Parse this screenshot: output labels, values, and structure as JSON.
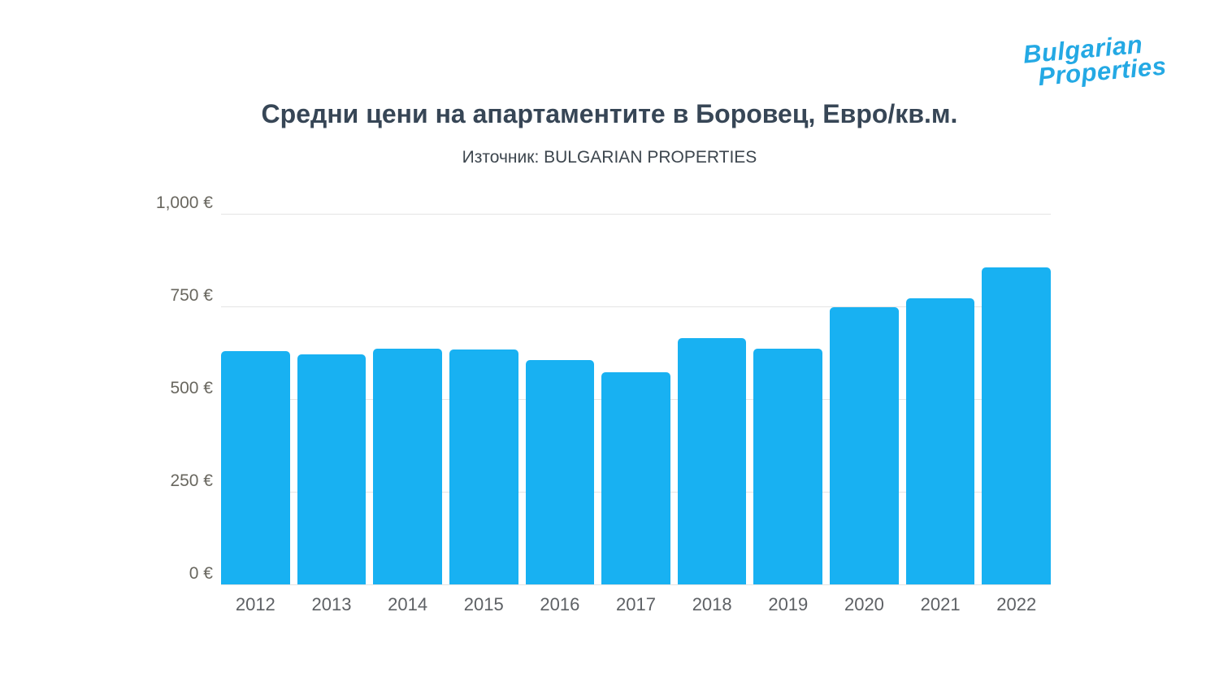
{
  "logo": {
    "line1": "Bulgarian",
    "line2": "Properties",
    "color": "#24a9e4"
  },
  "header": {
    "title": "Средни цени на апартаментите в Боровец, Евро/кв.м.",
    "subtitle": "Източник: BULGARIAN PROPERTIES"
  },
  "chart_data": {
    "type": "bar",
    "title": "Средни цени на апартаментите в Боровец, Евро/кв.м.",
    "subtitle": "Източник: BULGARIAN PROPERTIES",
    "categories": [
      "2012",
      "2013",
      "2014",
      "2015",
      "2016",
      "2017",
      "2018",
      "2019",
      "2020",
      "2021",
      "2022"
    ],
    "values": [
      630,
      620,
      635,
      633,
      605,
      572,
      665,
      636,
      747,
      771,
      856
    ],
    "xlabel": "",
    "ylabel": "",
    "ylim": [
      0,
      1000
    ],
    "yticks": [
      {
        "value": 0,
        "label": "0 €"
      },
      {
        "value": 250,
        "label": "250 €"
      },
      {
        "value": 500,
        "label": "500 €"
      },
      {
        "value": 750,
        "label": "750 €"
      },
      {
        "value": 1000,
        "label": "1,000 €"
      }
    ],
    "grid": "horizontal",
    "legend": "none",
    "bar_color": "#18b1f2",
    "grid_color": "#e4e4e4"
  }
}
